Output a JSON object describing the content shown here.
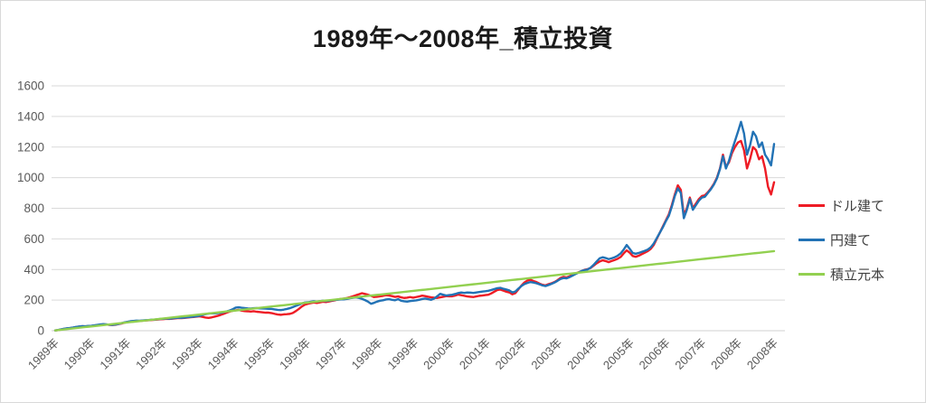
{
  "title": "1989年〜2008年_積立投資",
  "chart_data": {
    "type": "line",
    "title": "1989年〜2008年_積立投資",
    "xlabel": "",
    "ylabel": "",
    "ylim": [
      0,
      1600
    ],
    "grid": "horizontal",
    "legend_position": "right",
    "y_ticks": [
      0,
      200,
      400,
      600,
      800,
      1000,
      1200,
      1400,
      1600
    ],
    "x_tick_labels": [
      "1989年",
      "1990年",
      "1991年",
      "1992年",
      "1993年",
      "1994年",
      "1995年",
      "1996年",
      "1997年",
      "1998年",
      "1999年",
      "2000年",
      "2001年",
      "2002年",
      "2003年",
      "2004年",
      "2005年",
      "2006年",
      "2007年",
      "2008年",
      "2008年"
    ],
    "x_start": "1989-01",
    "x_end": "2008-12",
    "points_per_series": 240,
    "series": [
      {
        "name": "ドル建て",
        "color": "#ee1c25",
        "values": [
          2,
          4,
          8,
          12,
          15,
          17,
          20,
          24,
          27,
          29,
          28,
          30,
          31,
          34,
          36,
          39,
          41,
          40,
          38,
          37,
          39,
          43,
          47,
          52,
          57,
          60,
          62,
          64,
          63,
          65,
          67,
          68,
          70,
          71,
          73,
          75,
          76,
          78,
          77,
          79,
          81,
          83,
          82,
          84,
          86,
          88,
          90,
          92,
          94,
          90,
          86,
          84,
          87,
          92,
          97,
          103,
          110,
          118,
          125,
          130,
          133,
          136,
          131,
          128,
          127,
          125,
          127,
          124,
          122,
          120,
          118,
          118,
          115,
          110,
          106,
          104,
          107,
          108,
          110,
          116,
          128,
          142,
          158,
          170,
          176,
          180,
          184,
          181,
          185,
          189,
          187,
          191,
          195,
          199,
          204,
          208,
          210,
          214,
          219,
          225,
          232,
          238,
          245,
          240,
          235,
          228,
          220,
          222,
          225,
          228,
          232,
          230,
          226,
          221,
          224,
          218,
          214,
          216,
          220,
          216,
          220,
          224,
          229,
          226,
          222,
          218,
          216,
          214,
          218,
          222,
          226,
          225,
          225,
          230,
          236,
          232,
          228,
          224,
          222,
          220,
          224,
          228,
          230,
          233,
          235,
          244,
          255,
          266,
          269,
          262,
          255,
          250,
          238,
          246,
          270,
          295,
          315,
          328,
          333,
          325,
          318,
          308,
          300,
          296,
          304,
          310,
          318,
          330,
          345,
          352,
          348,
          356,
          365,
          374,
          382,
          390,
          398,
          402,
          410,
          425,
          440,
          452,
          460,
          455,
          448,
          455,
          462,
          470,
          482,
          505,
          525,
          510,
          488,
          483,
          490,
          500,
          510,
          520,
          535,
          560,
          600,
          640,
          680,
          720,
          760,
          820,
          890,
          950,
          920,
          755,
          800,
          870,
          800,
          830,
          860,
          880,
          885,
          905,
          930,
          960,
          1000,
          1060,
          1150,
          1070,
          1100,
          1160,
          1200,
          1230,
          1240,
          1180,
          1060,
          1120,
          1200,
          1180,
          1120,
          1140,
          1060,
          940,
          890,
          970
        ]
      },
      {
        "name": "円建て",
        "color": "#2272b5",
        "values": [
          2,
          5,
          9,
          13,
          16,
          18,
          21,
          25,
          28,
          30,
          29,
          31,
          32,
          35,
          38,
          41,
          43,
          42,
          39,
          38,
          40,
          44,
          49,
          54,
          58,
          62,
          64,
          66,
          65,
          67,
          69,
          70,
          72,
          73,
          75,
          77,
          78,
          80,
          79,
          81,
          83,
          85,
          84,
          86,
          88,
          90,
          92,
          94,
          98,
          103,
          108,
          112,
          114,
          113,
          115,
          117,
          121,
          126,
          132,
          140,
          151,
          153,
          150,
          148,
          146,
          145,
          147,
          148,
          146,
          145,
          144,
          143,
          142,
          139,
          136,
          135,
          138,
          142,
          147,
          154,
          162,
          170,
          178,
          184,
          186,
          189,
          192,
          190,
          193,
          196,
          194,
          196,
          199,
          201,
          203,
          205,
          205,
          208,
          212,
          215,
          218,
          214,
          208,
          200,
          190,
          176,
          182,
          190,
          196,
          199,
          204,
          206,
          202,
          199,
          206,
          196,
          192,
          190,
          194,
          196,
          198,
          202,
          207,
          210,
          206,
          202,
          210,
          225,
          241,
          235,
          230,
          233,
          235,
          240,
          246,
          250,
          247,
          250,
          249,
          247,
          250,
          253,
          256,
          258,
          261,
          266,
          272,
          278,
          280,
          274,
          269,
          263,
          250,
          256,
          275,
          292,
          305,
          312,
          318,
          315,
          310,
          303,
          296,
          292,
          298,
          306,
          315,
          326,
          338,
          344,
          342,
          350,
          360,
          370,
          380,
          390,
          396,
          400,
          412,
          430,
          452,
          473,
          480,
          475,
          468,
          473,
          480,
          490,
          505,
          530,
          560,
          535,
          508,
          503,
          508,
          515,
          522,
          530,
          545,
          570,
          605,
          640,
          675,
          715,
          750,
          810,
          880,
          930,
          900,
          735,
          790,
          860,
          790,
          820,
          850,
          870,
          875,
          900,
          925,
          955,
          995,
          1055,
          1140,
          1060,
          1110,
          1180,
          1240,
          1300,
          1365,
          1290,
          1150,
          1210,
          1300,
          1270,
          1200,
          1230,
          1150,
          1120,
          1080,
          1220
        ]
      },
      {
        "name": "積立元本",
        "color": "#92d050",
        "linear": {
          "start": 2,
          "end": 520
        }
      }
    ]
  },
  "style_colors": {
    "gridline": "#d9d9d9",
    "axis_line": "#d0d0d0",
    "tick_label": "#595959",
    "legend_text": "#404040",
    "title_text": "#1a1a1a",
    "frame_border": "#d9d9d9"
  }
}
